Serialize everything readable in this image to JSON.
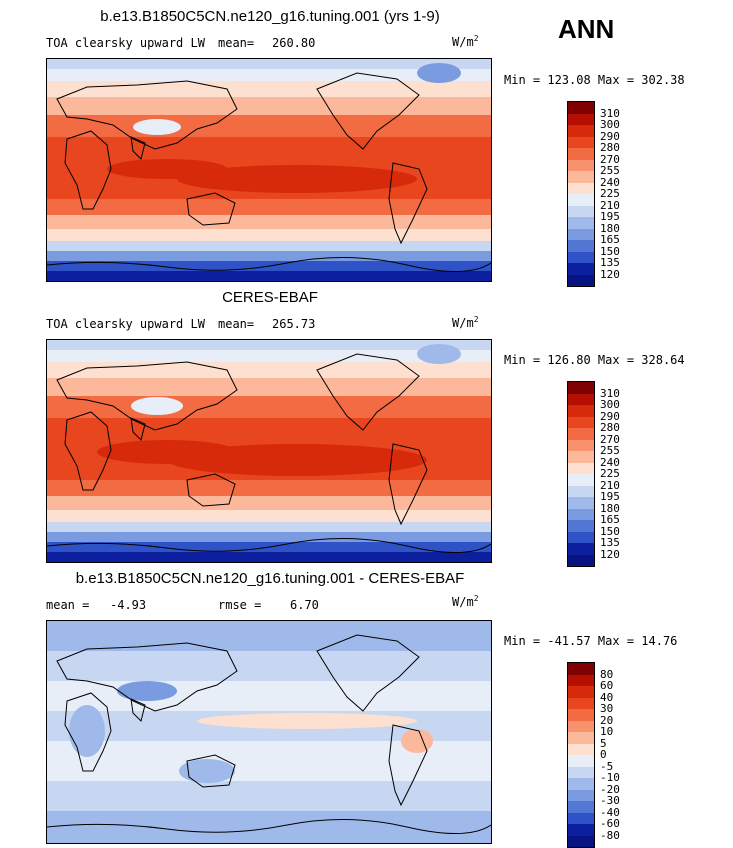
{
  "season": "ANN",
  "panels": [
    {
      "title": "b.e13.B1850C5CN.ne120_g16.tuning.001 (yrs 1-9)",
      "left_label": "TOA clearsky upward LW",
      "mean_label": "mean=",
      "mean_value": "260.80",
      "units": "W/m",
      "units_exp": "2",
      "minmax": "Min = 123.08 Max = 302.38",
      "cbar": [
        "310",
        "300",
        "290",
        "280",
        "270",
        "255",
        "240",
        "225",
        "210",
        "195",
        "180",
        "165",
        "150",
        "135",
        "120"
      ]
    },
    {
      "title": "CERES-EBAF",
      "left_label": "TOA clearsky upward LW",
      "mean_label": "mean=",
      "mean_value": "265.73",
      "units": "W/m",
      "units_exp": "2",
      "minmax": "Min = 126.80 Max = 328.64",
      "cbar": [
        "310",
        "300",
        "290",
        "280",
        "270",
        "255",
        "240",
        "225",
        "210",
        "195",
        "180",
        "165",
        "150",
        "135",
        "120"
      ]
    },
    {
      "title": "b.e13.B1850C5CN.ne120_g16.tuning.001 - CERES-EBAF",
      "mean_label": "mean =",
      "mean_value": "-4.93",
      "rmse_label": "rmse =",
      "rmse_value": "6.70",
      "units": "W/m",
      "units_exp": "2",
      "minmax": "Min = -41.57 Max =  14.76",
      "cbar": [
        "80",
        "60",
        "40",
        "30",
        "20",
        "10",
        "5",
        "0",
        "-5",
        "-10",
        "-20",
        "-30",
        "-40",
        "-60",
        "-80"
      ]
    }
  ],
  "colors": {
    "abs_scale": [
      "#7f0000",
      "#b40f00",
      "#d62a0a",
      "#e8461f",
      "#f26b43",
      "#f7926d",
      "#fbb89a",
      "#fde0d0",
      "#e8eef8",
      "#c7d7f2",
      "#9fbaea",
      "#7a9be0",
      "#5378d4",
      "#2f53c6",
      "#0c1f9e",
      "#061381"
    ],
    "diff_scale": [
      "#7f0000",
      "#b40f00",
      "#d62a0a",
      "#e8461f",
      "#f26b43",
      "#f7926d",
      "#fbb89a",
      "#fde0d0",
      "#e8eef8",
      "#c7d7f2",
      "#9fbaea",
      "#7a9be0",
      "#5378d4",
      "#2f53c6",
      "#0c1f9e",
      "#061381"
    ]
  }
}
